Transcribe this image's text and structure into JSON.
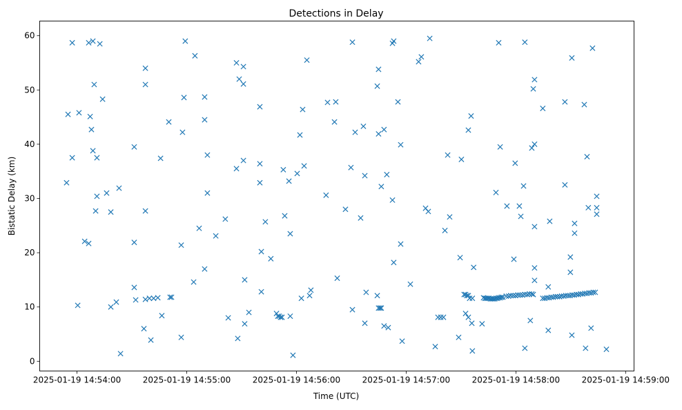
{
  "chart_data": {
    "type": "scatter",
    "title": "Detections in Delay",
    "xlabel": "Time (UTC)",
    "ylabel": "Bistatic Delay (km)",
    "x_unit": "seconds after 2025-01-19 14:54:00 UTC",
    "xlim": [
      -20.4,
      304.6
    ],
    "ylim": [
      -1.8,
      62.7
    ],
    "x_ticks": [
      0,
      60,
      120,
      180,
      240,
      300
    ],
    "x_tick_labels": [
      "2025-01-19 14:54:00",
      "2025-01-19 14:55:00",
      "2025-01-19 14:56:00",
      "2025-01-19 14:57:00",
      "2025-01-19 14:58:00",
      "2025-01-19 14:59:00"
    ],
    "y_ticks": [
      0,
      10,
      20,
      30,
      40,
      50,
      60
    ],
    "y_tick_labels": [
      "0",
      "10",
      "20",
      "30",
      "40",
      "50",
      "60"
    ],
    "grid": false,
    "marker": "x",
    "color": "#1f77b4",
    "series": [
      {
        "name": "detections",
        "points": [
          [
            -5.7,
            32.9
          ],
          [
            -4.9,
            45.5
          ],
          [
            -2.6,
            58.7
          ],
          [
            -2.6,
            37.5
          ],
          [
            0.4,
            10.3
          ],
          [
            1.1,
            45.8
          ],
          [
            4.2,
            22.1
          ],
          [
            6.4,
            21.7
          ],
          [
            6.4,
            58.7
          ],
          [
            7.2,
            45.1
          ],
          [
            7.9,
            42.7
          ],
          [
            8.7,
            59.0
          ],
          [
            8.7,
            38.8
          ],
          [
            9.4,
            51.0
          ],
          [
            10.2,
            27.7
          ],
          [
            10.9,
            37.5
          ],
          [
            10.9,
            30.4
          ],
          [
            12.5,
            58.5
          ],
          [
            14.0,
            48.3
          ],
          [
            16.2,
            31.0
          ],
          [
            18.5,
            27.5
          ],
          [
            18.5,
            10.0
          ],
          [
            21.5,
            10.9
          ],
          [
            23.0,
            31.9
          ],
          [
            23.8,
            1.4
          ],
          [
            31.3,
            21.9
          ],
          [
            31.3,
            39.5
          ],
          [
            31.3,
            13.6
          ],
          [
            32.1,
            11.3
          ],
          [
            36.6,
            6.0
          ],
          [
            37.4,
            27.7
          ],
          [
            37.4,
            51.0
          ],
          [
            37.4,
            54.0
          ],
          [
            37.4,
            11.4
          ],
          [
            39.6,
            11.6
          ],
          [
            40.4,
            3.9
          ],
          [
            41.9,
            11.6
          ],
          [
            44.2,
            11.7
          ],
          [
            45.7,
            37.4
          ],
          [
            46.4,
            8.4
          ],
          [
            50.2,
            44.1
          ],
          [
            50.9,
            11.8
          ],
          [
            51.7,
            11.8
          ],
          [
            57.0,
            21.4
          ],
          [
            57.0,
            4.4
          ],
          [
            57.7,
            42.2
          ],
          [
            58.5,
            48.6
          ],
          [
            59.2,
            59.0
          ],
          [
            63.8,
            14.6
          ],
          [
            64.5,
            56.3
          ],
          [
            66.8,
            24.5
          ],
          [
            69.8,
            48.7
          ],
          [
            69.8,
            44.5
          ],
          [
            69.8,
            17.0
          ],
          [
            71.3,
            38.0
          ],
          [
            71.3,
            31.0
          ],
          [
            75.9,
            23.1
          ],
          [
            81.1,
            26.2
          ],
          [
            82.7,
            8.0
          ],
          [
            87.2,
            55.0
          ],
          [
            87.2,
            35.5
          ],
          [
            87.9,
            4.2
          ],
          [
            88.7,
            52.0
          ],
          [
            91.0,
            54.3
          ],
          [
            91.0,
            51.1
          ],
          [
            91.0,
            37.0
          ],
          [
            91.7,
            6.9
          ],
          [
            91.7,
            15.0
          ],
          [
            94.0,
            9.0
          ],
          [
            100.0,
            36.4
          ],
          [
            100.0,
            46.9
          ],
          [
            100.0,
            32.9
          ],
          [
            100.8,
            20.2
          ],
          [
            100.8,
            12.8
          ],
          [
            103.0,
            25.7
          ],
          [
            106.0,
            18.9
          ],
          [
            109.1,
            8.8
          ],
          [
            109.8,
            8.3
          ],
          [
            110.6,
            8.3
          ],
          [
            111.3,
            8.1
          ],
          [
            112.1,
            8.1
          ],
          [
            112.8,
            35.3
          ],
          [
            113.6,
            26.8
          ],
          [
            115.9,
            33.2
          ],
          [
            116.6,
            23.5
          ],
          [
            116.6,
            8.3
          ],
          [
            118.1,
            1.1
          ],
          [
            120.4,
            34.6
          ],
          [
            121.9,
            41.7
          ],
          [
            122.7,
            11.6
          ],
          [
            123.4,
            46.4
          ],
          [
            124.2,
            36.0
          ],
          [
            125.7,
            55.5
          ],
          [
            127.2,
            12.1
          ],
          [
            127.9,
            13.1
          ],
          [
            136.2,
            30.6
          ],
          [
            137.0,
            47.7
          ],
          [
            140.8,
            44.1
          ],
          [
            141.5,
            47.8
          ],
          [
            142.3,
            15.3
          ],
          [
            146.8,
            28.0
          ],
          [
            149.8,
            35.7
          ],
          [
            150.6,
            9.5
          ],
          [
            150.6,
            58.8
          ],
          [
            152.1,
            42.2
          ],
          [
            155.1,
            26.4
          ],
          [
            156.6,
            43.3
          ],
          [
            157.4,
            34.2
          ],
          [
            157.4,
            7.0
          ],
          [
            158.1,
            12.7
          ],
          [
            164.2,
            50.7
          ],
          [
            164.2,
            12.1
          ],
          [
            164.9,
            53.8
          ],
          [
            164.9,
            41.9
          ],
          [
            164.9,
            9.8
          ],
          [
            165.7,
            9.8
          ],
          [
            166.4,
            9.8
          ],
          [
            166.4,
            32.2
          ],
          [
            167.9,
            42.7
          ],
          [
            167.9,
            6.5
          ],
          [
            169.4,
            34.4
          ],
          [
            170.2,
            6.2
          ],
          [
            172.5,
            58.6
          ],
          [
            172.5,
            29.7
          ],
          [
            173.2,
            18.2
          ],
          [
            173.2,
            59.0
          ],
          [
            175.5,
            47.8
          ],
          [
            177.0,
            39.9
          ],
          [
            177.0,
            21.6
          ],
          [
            177.8,
            3.7
          ],
          [
            182.3,
            14.2
          ],
          [
            186.8,
            55.2
          ],
          [
            188.3,
            56.1
          ],
          [
            190.6,
            28.2
          ],
          [
            192.1,
            27.6
          ],
          [
            192.9,
            59.5
          ],
          [
            195.9,
            2.7
          ],
          [
            197.4,
            8.1
          ],
          [
            198.9,
            8.1
          ],
          [
            200.4,
            8.1
          ],
          [
            201.2,
            24.1
          ],
          [
            202.7,
            38.0
          ],
          [
            203.8,
            26.6
          ],
          [
            208.7,
            4.4
          ],
          [
            209.5,
            19.1
          ],
          [
            210.2,
            37.2
          ],
          [
            211.7,
            12.3
          ],
          [
            212.5,
            12.3
          ],
          [
            213.2,
            12.1
          ],
          [
            214.0,
            42.6
          ],
          [
            214.0,
            12.1
          ],
          [
            214.7,
            11.6
          ],
          [
            215.5,
            45.2
          ],
          [
            216.2,
            11.6
          ],
          [
            212.5,
            8.8
          ],
          [
            214.0,
            8.1
          ],
          [
            215.9,
            7.0
          ],
          [
            216.2,
            1.9
          ],
          [
            216.9,
            17.3
          ],
          [
            221.5,
            6.9
          ],
          [
            222.3,
            11.7
          ],
          [
            223.1,
            11.6
          ],
          [
            223.8,
            11.6
          ],
          [
            224.6,
            11.6
          ],
          [
            225.3,
            11.6
          ],
          [
            226.1,
            11.5
          ],
          [
            226.9,
            11.5
          ],
          [
            227.6,
            11.5
          ],
          [
            228.4,
            11.5
          ],
          [
            229.1,
            11.6
          ],
          [
            229.9,
            11.6
          ],
          [
            230.6,
            11.7
          ],
          [
            231.4,
            11.7
          ],
          [
            232.1,
            11.8
          ],
          [
            232.9,
            11.8
          ],
          [
            229.1,
            31.1
          ],
          [
            230.6,
            58.7
          ],
          [
            231.4,
            39.5
          ],
          [
            235.1,
            28.6
          ],
          [
            234.7,
            12.0
          ],
          [
            236.0,
            12.0
          ],
          [
            237.2,
            12.1
          ],
          [
            238.5,
            12.1
          ],
          [
            239.8,
            12.1
          ],
          [
            241.1,
            12.2
          ],
          [
            242.3,
            12.2
          ],
          [
            243.6,
            12.2
          ],
          [
            244.9,
            12.3
          ],
          [
            246.2,
            12.3
          ],
          [
            247.4,
            12.4
          ],
          [
            248.7,
            12.4
          ],
          [
            238.9,
            18.8
          ],
          [
            239.6,
            36.5
          ],
          [
            241.9,
            28.6
          ],
          [
            242.7,
            26.7
          ],
          [
            244.2,
            32.3
          ],
          [
            244.9,
            2.4
          ],
          [
            244.9,
            58.8
          ],
          [
            247.9,
            7.5
          ],
          [
            248.7,
            39.3
          ],
          [
            250.2,
            40.0
          ],
          [
            249.5,
            50.2
          ],
          [
            250.2,
            51.9
          ],
          [
            250.2,
            14.9
          ],
          [
            250.2,
            24.8
          ],
          [
            250.2,
            17.2
          ],
          [
            249.5,
            12.3
          ],
          [
            254.7,
            46.6
          ],
          [
            254.7,
            11.6
          ],
          [
            255.8,
            11.6
          ],
          [
            257.0,
            11.7
          ],
          [
            258.1,
            11.7
          ],
          [
            259.3,
            11.8
          ],
          [
            260.4,
            11.8
          ],
          [
            261.6,
            11.9
          ],
          [
            262.7,
            11.9
          ],
          [
            263.9,
            11.9
          ],
          [
            265.0,
            12.0
          ],
          [
            266.2,
            12.0
          ],
          [
            267.3,
            12.1
          ],
          [
            268.5,
            12.1
          ],
          [
            269.6,
            12.1
          ],
          [
            270.8,
            12.2
          ],
          [
            271.9,
            12.2
          ],
          [
            273.1,
            12.3
          ],
          [
            274.2,
            12.3
          ],
          [
            275.4,
            12.4
          ],
          [
            276.5,
            12.4
          ],
          [
            277.7,
            12.5
          ],
          [
            278.8,
            12.5
          ],
          [
            280.0,
            12.6
          ],
          [
            281.1,
            12.6
          ],
          [
            282.3,
            12.7
          ],
          [
            283.4,
            12.7
          ],
          [
            257.7,
            13.7
          ],
          [
            257.7,
            5.7
          ],
          [
            258.5,
            25.8
          ],
          [
            266.8,
            47.8
          ],
          [
            266.8,
            32.5
          ],
          [
            269.8,
            19.2
          ],
          [
            269.8,
            16.4
          ],
          [
            270.6,
            55.9
          ],
          [
            270.6,
            4.8
          ],
          [
            272.1,
            25.4
          ],
          [
            272.1,
            23.6
          ],
          [
            277.4,
            47.3
          ],
          [
            278.1,
            2.4
          ],
          [
            278.9,
            37.7
          ],
          [
            279.6,
            28.3
          ],
          [
            281.1,
            6.1
          ],
          [
            281.9,
            57.7
          ],
          [
            284.2,
            30.4
          ],
          [
            284.2,
            28.3
          ],
          [
            284.2,
            27.1
          ],
          [
            289.5,
            2.2
          ]
        ]
      }
    ]
  }
}
